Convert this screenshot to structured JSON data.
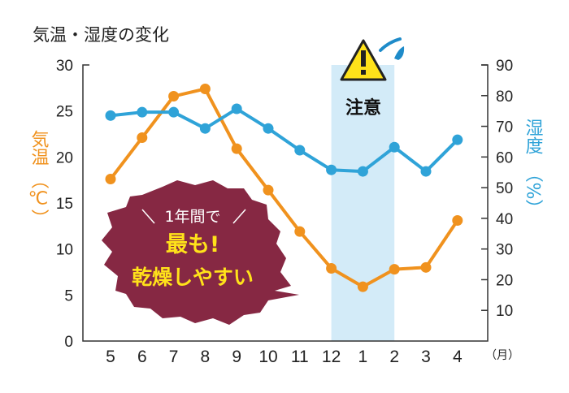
{
  "chart_data": {
    "type": "line",
    "title": "気温・湿度の変化",
    "categories": [
      "5",
      "6",
      "7",
      "8",
      "9",
      "10",
      "11",
      "12",
      "1",
      "2",
      "3",
      "4"
    ],
    "x_unit": "（月）",
    "left_axis": {
      "label": "気温",
      "unit": "（℃）",
      "ylim": [
        0,
        30
      ],
      "ticks": [
        "0",
        "5",
        "10",
        "15",
        "20",
        "25",
        "30"
      ]
    },
    "right_axis": {
      "label": "湿度",
      "unit": "（%）",
      "ylim": [
        0,
        90
      ],
      "ticks": [
        "10",
        "20",
        "30",
        "40",
        "50",
        "60",
        "70",
        "80",
        "90"
      ]
    },
    "series": [
      {
        "name": "気温",
        "axis": "left",
        "color": "#f0921e",
        "values": [
          17.6,
          22.1,
          26.6,
          27.4,
          20.9,
          16.4,
          11.9,
          7.9,
          5.9,
          7.8,
          8.0,
          13.1
        ]
      },
      {
        "name": "湿度",
        "axis": "right",
        "color": "#2fa3d8",
        "values": [
          73.5,
          74.6,
          74.6,
          69.3,
          75.7,
          69.3,
          62.2,
          55.8,
          55.3,
          63.2,
          55.3,
          65.6
        ]
      }
    ],
    "highlight": {
      "from": "12",
      "to": "2",
      "color": "#d3ebf8",
      "label": "注意"
    },
    "callout": {
      "line1": "1年間で",
      "line2": "最も!",
      "line3": "乾燥しやすい",
      "bg": "#862843",
      "accent": "#ffe21a"
    },
    "grid": false
  }
}
